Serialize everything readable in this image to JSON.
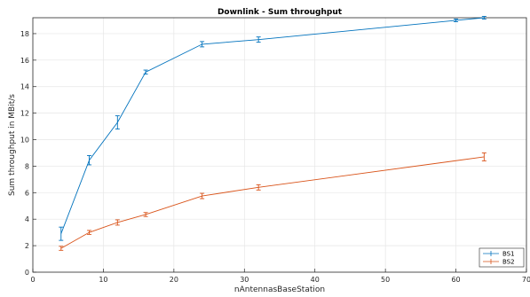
{
  "chart_data": {
    "type": "line",
    "title": "Downlink - Sum throughput",
    "xlabel": "nAntennasBaseStation",
    "ylabel": "Sum throughput in MBit/s",
    "xlim": [
      0,
      70
    ],
    "ylim": [
      0,
      19.2
    ],
    "xticks": [
      0,
      10,
      20,
      30,
      40,
      50,
      60,
      70
    ],
    "yticks": [
      0,
      2,
      4,
      6,
      8,
      10,
      12,
      14,
      16,
      18
    ],
    "grid": true,
    "legend_position": "bottom-right",
    "series": [
      {
        "name": "BS1",
        "color": "#0072BD",
        "x": [
          4,
          8,
          12,
          16,
          24,
          32,
          60,
          64
        ],
        "y": [
          2.9,
          8.45,
          11.3,
          15.1,
          17.2,
          17.55,
          19.0,
          19.2
        ],
        "err": [
          0.5,
          0.35,
          0.5,
          0.15,
          0.2,
          0.2,
          0.1,
          0.1
        ]
      },
      {
        "name": "BS2",
        "color": "#D95319",
        "x": [
          4,
          8,
          12,
          16,
          24,
          32,
          64
        ],
        "y": [
          1.8,
          3.0,
          3.75,
          4.35,
          5.75,
          6.4,
          8.7
        ],
        "err": [
          0.15,
          0.15,
          0.2,
          0.15,
          0.2,
          0.2,
          0.3
        ]
      }
    ]
  }
}
